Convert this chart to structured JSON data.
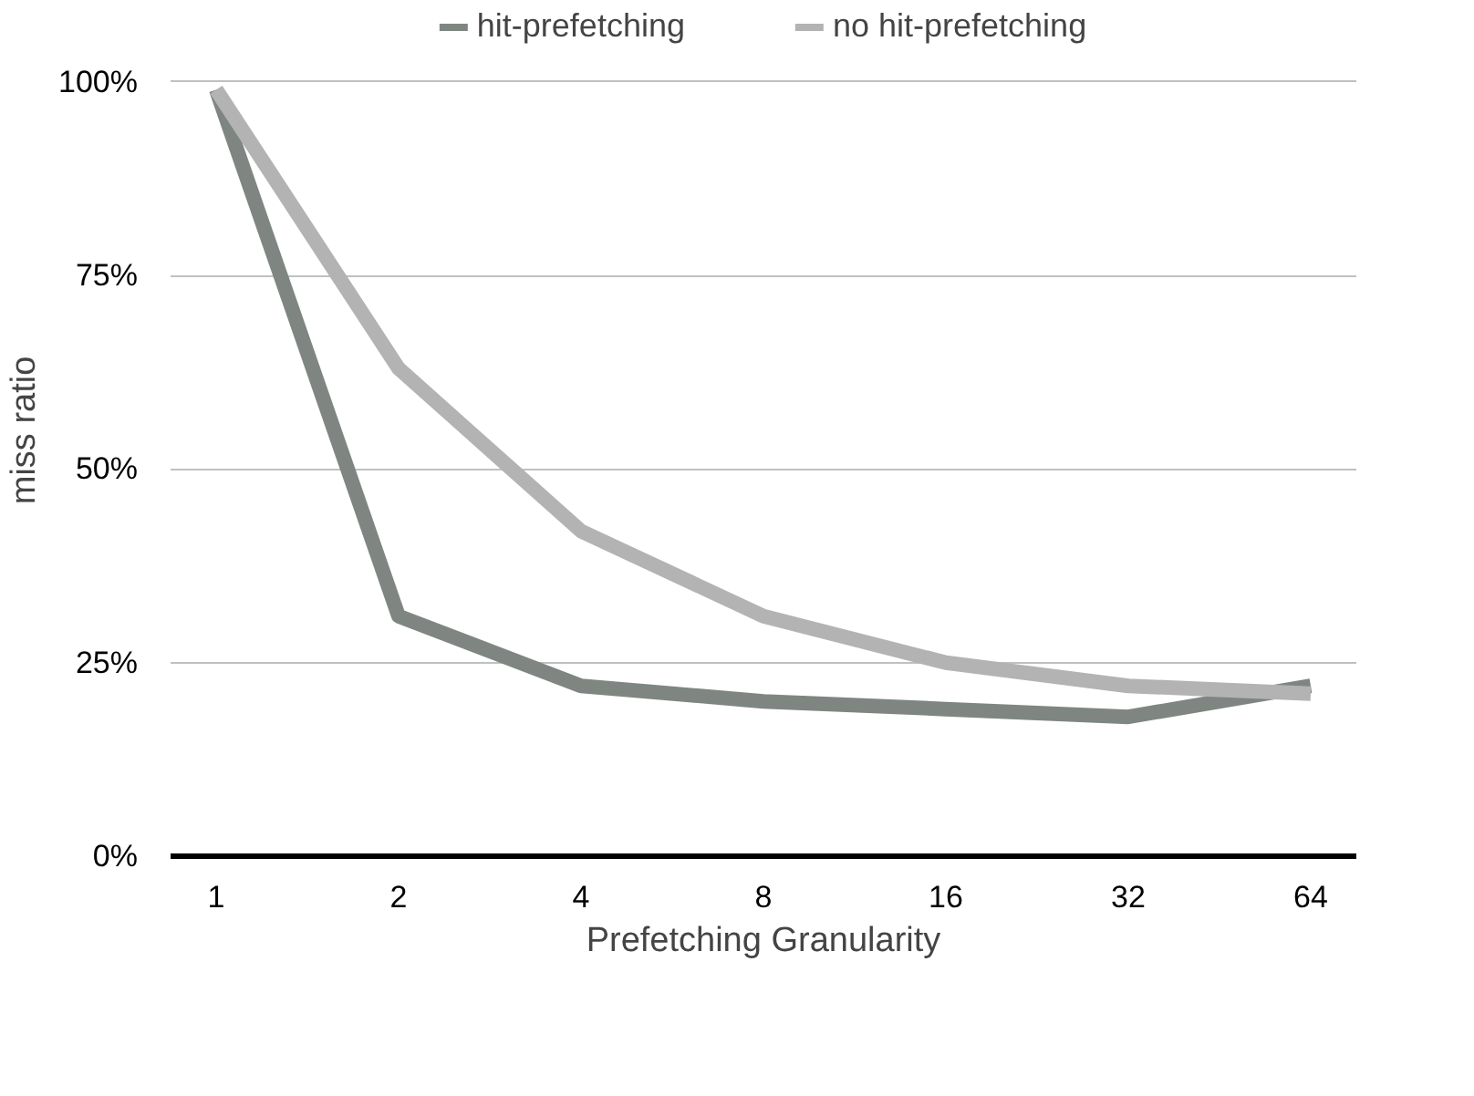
{
  "chart_data": {
    "type": "line",
    "xlabel": "Prefetching Granularity",
    "ylabel": "miss ratio",
    "categories": [
      "1",
      "2",
      "4",
      "8",
      "16",
      "32",
      "64"
    ],
    "series": [
      {
        "name": "hit-prefetching",
        "color": "#7f8682",
        "values": [
          99,
          31,
          22,
          20,
          19,
          18,
          22
        ]
      },
      {
        "name": "no hit-prefetching",
        "color": "#b3b3b3",
        "values": [
          99,
          63,
          42,
          31,
          25,
          22,
          21
        ]
      }
    ],
    "ylim": [
      0,
      100
    ],
    "yticks": [
      {
        "value": 0,
        "label": "0%"
      },
      {
        "value": 25,
        "label": "25%"
      },
      {
        "value": 50,
        "label": "50%"
      },
      {
        "value": 75,
        "label": "75%"
      },
      {
        "value": 100,
        "label": "100%"
      }
    ],
    "grid": "y",
    "legend": "top",
    "marker": "none",
    "line_style": "solid"
  }
}
